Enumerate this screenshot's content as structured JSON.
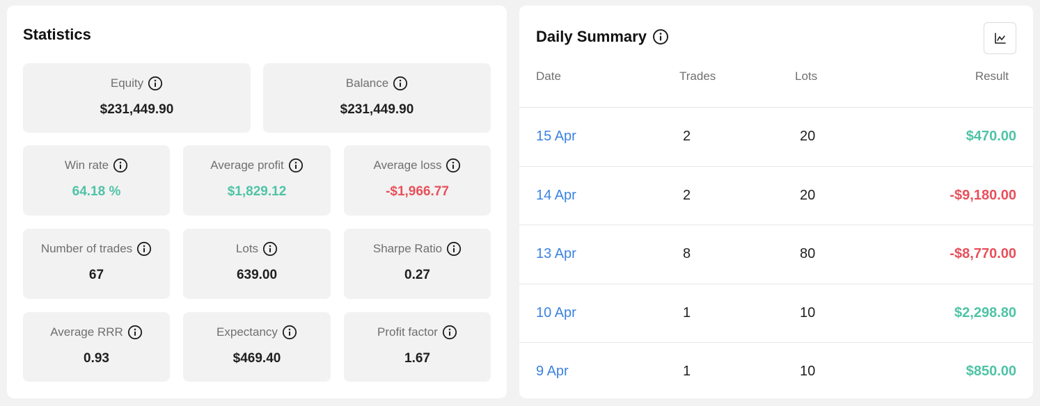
{
  "statistics": {
    "title": "Statistics",
    "cards": [
      {
        "label": "Equity",
        "value": "$231,449.90",
        "tone": "neutral"
      },
      {
        "label": "Balance",
        "value": "$231,449.90",
        "tone": "neutral"
      },
      {
        "label": "Win rate",
        "value": "64.18 %",
        "tone": "positive"
      },
      {
        "label": "Average profit",
        "value": "$1,829.12",
        "tone": "positive"
      },
      {
        "label": "Average loss",
        "value": "-$1,966.77",
        "tone": "negative"
      },
      {
        "label": "Number of trades",
        "value": "67",
        "tone": "neutral"
      },
      {
        "label": "Lots",
        "value": "639.00",
        "tone": "neutral"
      },
      {
        "label": "Sharpe Ratio",
        "value": "0.27",
        "tone": "neutral"
      },
      {
        "label": "Average RRR",
        "value": "0.93",
        "tone": "neutral"
      },
      {
        "label": "Expectancy",
        "value": "$469.40",
        "tone": "neutral"
      },
      {
        "label": "Profit factor",
        "value": "1.67",
        "tone": "neutral"
      }
    ]
  },
  "daily_summary": {
    "title": "Daily Summary",
    "chart_toggle_icon": "line-chart-icon",
    "columns": {
      "date": "Date",
      "trades": "Trades",
      "lots": "Lots",
      "result": "Result"
    },
    "rows": [
      {
        "date": "15 Apr",
        "trades": "2",
        "lots": "20",
        "result": "$470.00",
        "tone": "positive"
      },
      {
        "date": "14 Apr",
        "trades": "2",
        "lots": "20",
        "result": "-$9,180.00",
        "tone": "negative"
      },
      {
        "date": "13 Apr",
        "trades": "8",
        "lots": "80",
        "result": "-$8,770.00",
        "tone": "negative"
      },
      {
        "date": "10 Apr",
        "trades": "1",
        "lots": "10",
        "result": "$2,298.80",
        "tone": "positive"
      },
      {
        "date": "9 Apr",
        "trades": "1",
        "lots": "10",
        "result": "$850.00",
        "tone": "positive"
      }
    ]
  },
  "colors": {
    "positive": "#4fc3a6",
    "negative": "#e8505b",
    "link": "#3b82e0",
    "card_bg": "#f2f2f2"
  }
}
